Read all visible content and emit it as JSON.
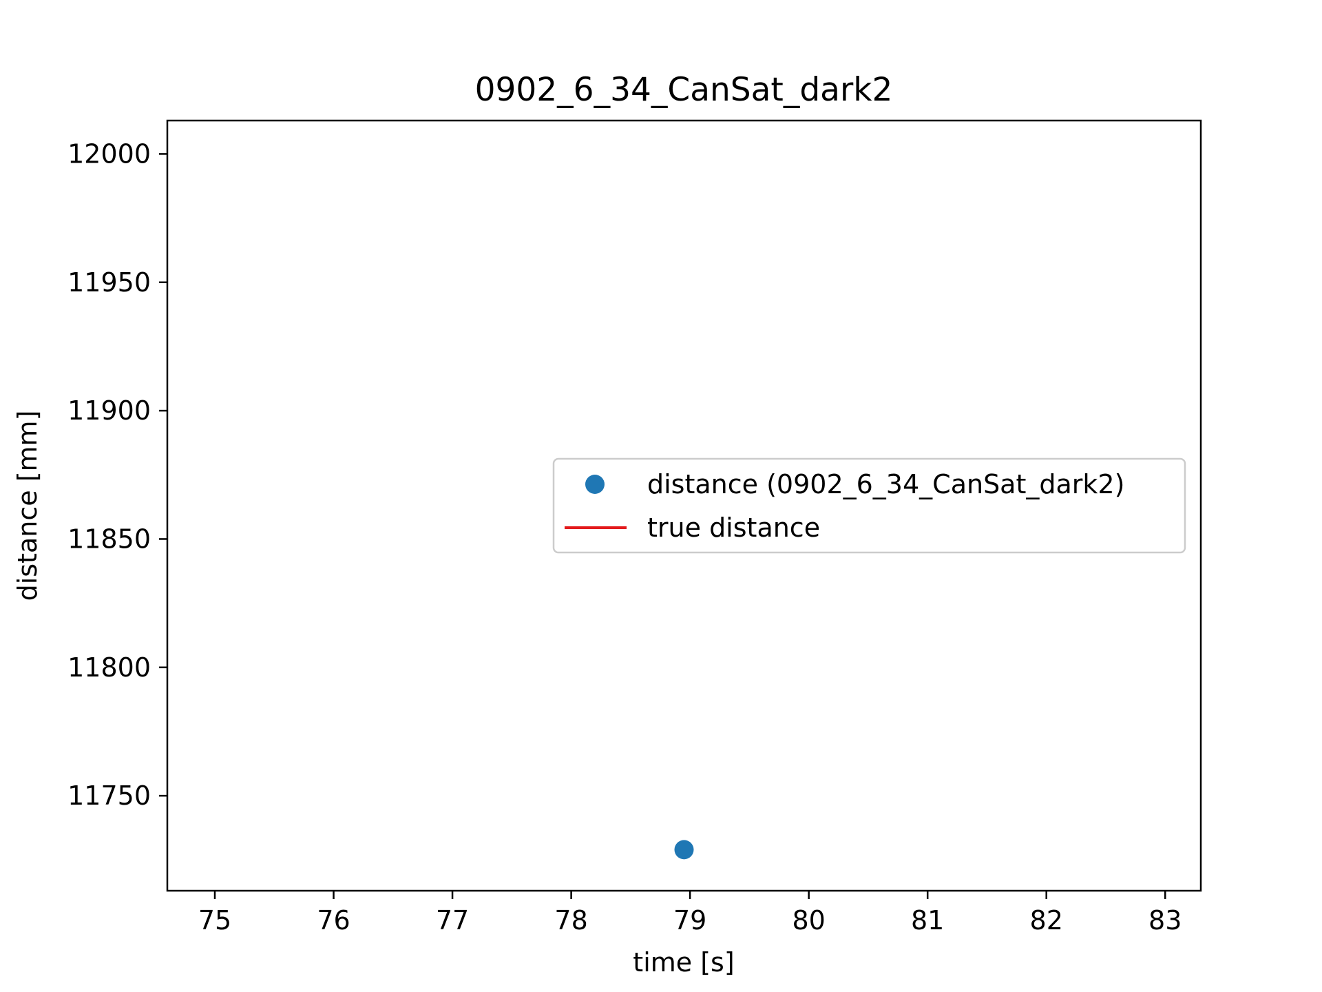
{
  "chart_data": {
    "type": "scatter",
    "title": "0902_6_34_CanSat_dark2",
    "xlabel": "time [s]",
    "ylabel": "distance [mm]",
    "xlim": [
      74.6,
      83.3
    ],
    "ylim": [
      11713,
      12013
    ],
    "xticks": [
      75,
      76,
      77,
      78,
      79,
      80,
      81,
      82,
      83
    ],
    "yticks": [
      11750,
      11800,
      11850,
      11900,
      11950,
      12000
    ],
    "grid": false,
    "legend_position": "center-right",
    "series": [
      {
        "name": "distance (0902_6_34_CanSat_dark2)",
        "kind": "scatter",
        "color": "#1f77b4",
        "points": [
          {
            "x": 78.95,
            "y": 11729
          }
        ]
      },
      {
        "name": "true distance",
        "kind": "line",
        "color": "#e31a1c",
        "points": []
      }
    ]
  }
}
